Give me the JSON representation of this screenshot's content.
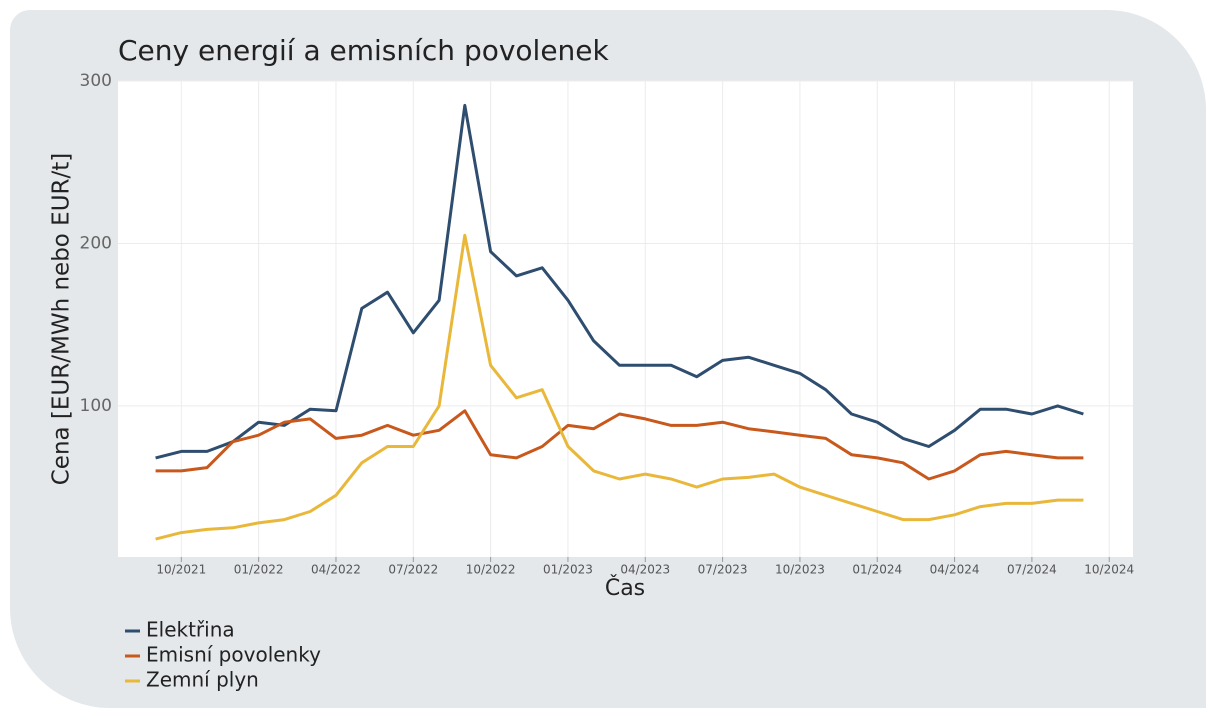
{
  "chart_data": {
    "type": "line",
    "title": "Ceny energií a emisních povolenek",
    "x_label": "Čas",
    "y_label": "Cena [EUR/MWh nebo EUR/t]",
    "x": [
      "2021-09",
      "2021-10",
      "2021-11",
      "2021-12",
      "2022-01",
      "2022-02",
      "2022-03",
      "2022-04",
      "2022-05",
      "2022-06",
      "2022-07",
      "2022-08",
      "2022-09",
      "2022-10",
      "2022-11",
      "2022-12",
      "2023-01",
      "2023-02",
      "2023-03",
      "2023-04",
      "2023-05",
      "2023-06",
      "2023-07",
      "2023-08",
      "2023-09",
      "2023-10",
      "2023-11",
      "2023-12",
      "2024-01",
      "2024-02",
      "2024-03",
      "2024-04",
      "2024-05",
      "2024-06",
      "2024-07",
      "2024-08",
      "2024-09"
    ],
    "series": [
      {
        "name": "Elektřina",
        "color": "#2e4d6f",
        "values": [
          68,
          72,
          72,
          78,
          90,
          88,
          98,
          97,
          160,
          170,
          145,
          165,
          285,
          195,
          180,
          185,
          165,
          140,
          125,
          125,
          125,
          118,
          128,
          130,
          125,
          120,
          110,
          95,
          90,
          80,
          75,
          85,
          98,
          98,
          95,
          100,
          95
        ]
      },
      {
        "name": "Emisní povolenky",
        "color": "#c8581c",
        "values": [
          60,
          60,
          62,
          78,
          82,
          90,
          92,
          80,
          82,
          88,
          82,
          85,
          97,
          70,
          68,
          75,
          88,
          86,
          95,
          92,
          88,
          88,
          90,
          86,
          84,
          82,
          80,
          70,
          68,
          65,
          55,
          60,
          70,
          72,
          70,
          68,
          68
        ]
      },
      {
        "name": "Zemní plyn",
        "color": "#e9b83a",
        "values": [
          18,
          22,
          24,
          25,
          28,
          30,
          35,
          45,
          65,
          75,
          75,
          100,
          205,
          125,
          105,
          110,
          75,
          60,
          55,
          58,
          55,
          50,
          55,
          56,
          58,
          50,
          45,
          40,
          35,
          30,
          30,
          33,
          38,
          40,
          40,
          42,
          42
        ]
      }
    ],
    "xlim": [
      "2021-07",
      "2024-11"
    ],
    "xticks": [
      {
        "value": "2021-10",
        "label": "10/2021"
      },
      {
        "value": "2022-01",
        "label": "01/2022"
      },
      {
        "value": "2022-04",
        "label": "04/2022"
      },
      {
        "value": "2022-07",
        "label": "07/2022"
      },
      {
        "value": "2022-10",
        "label": "10/2022"
      },
      {
        "value": "2023-01",
        "label": "01/2023"
      },
      {
        "value": "2023-04",
        "label": "04/2023"
      },
      {
        "value": "2023-07",
        "label": "07/2023"
      },
      {
        "value": "2023-10",
        "label": "10/2023"
      },
      {
        "value": "2024-01",
        "label": "01/2024"
      },
      {
        "value": "2024-04",
        "label": "04/2024"
      },
      {
        "value": "2024-07",
        "label": "07/2024"
      },
      {
        "value": "2024-10",
        "label": "10/2024"
      }
    ],
    "ylim": [
      7,
      300
    ],
    "yticks": [
      100,
      200,
      300
    ],
    "grid": true,
    "legend": "bottom-left"
  }
}
